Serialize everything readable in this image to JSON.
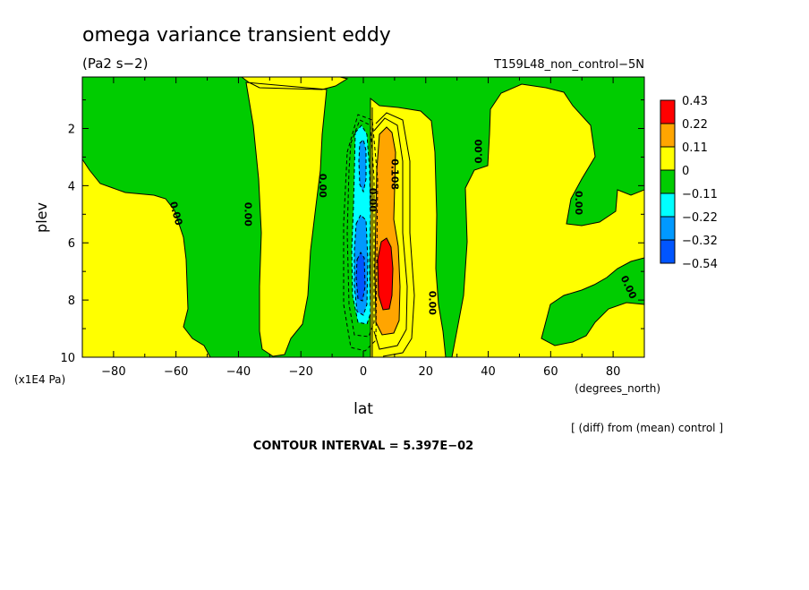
{
  "chart_data": {
    "type": "heatmap",
    "title": "omega variance transient eddy",
    "subtitle": "(Pa2 s−2)",
    "run_label": "T159L48_non_control−5N",
    "xlabel": "lat",
    "x_units": "(degrees_north)",
    "ylabel": "plev",
    "y_units": "(x1E4 Pa)",
    "diff_note": "[ (diff) from (mean) control ]",
    "contour_interval": "CONTOUR INTERVAL = 5.397E−02",
    "xlim": [
      -90,
      90
    ],
    "ylim": [
      10,
      0.2
    ],
    "x_ticks": [
      -80,
      -60,
      -40,
      -20,
      0,
      20,
      40,
      60,
      80
    ],
    "x_tick_labels": [
      "−80",
      "−60",
      "−40",
      "−20",
      "0",
      "20",
      "40",
      "60",
      "80"
    ],
    "y_ticks": [
      2,
      4,
      6,
      8,
      10
    ],
    "y_tick_labels": [
      "2",
      "4",
      "6",
      "8",
      "10"
    ],
    "legend": {
      "placement": "right",
      "levels": [
        "0.43",
        "0.22",
        "0.11",
        "0",
        "−0.11",
        "−0.22",
        "−0.32",
        "−0.54"
      ],
      "colors": [
        "#ff0000",
        "#ffa500",
        "#ffff00",
        "#00cc00",
        "#00ffff",
        "#0099ff",
        "#0055ff"
      ]
    },
    "contour_labels": [
      {
        "text": "0.00",
        "x": -61,
        "y": 5.0,
        "rot": 75
      },
      {
        "text": "0.00",
        "x": -38,
        "y": 5.0,
        "rot": 90
      },
      {
        "text": "0.00",
        "x": -14,
        "y": 4.0,
        "rot": 90
      },
      {
        "text": "0.00",
        "x": 38,
        "y": 2.8,
        "rot": -90
      },
      {
        "text": "0.00",
        "x": 68,
        "y": 4.6,
        "rot": 90
      },
      {
        "text": "0.00",
        "x": 84,
        "y": 7.6,
        "rot": 65
      },
      {
        "text": "0.00",
        "x": 21,
        "y": 8.1,
        "rot": 90
      },
      {
        "text": "0.108",
        "x": 9,
        "y": 3.6,
        "rot": 90
      },
      {
        "text": "0.00",
        "x": 2,
        "y": 4.5,
        "rot": 90
      }
    ]
  }
}
